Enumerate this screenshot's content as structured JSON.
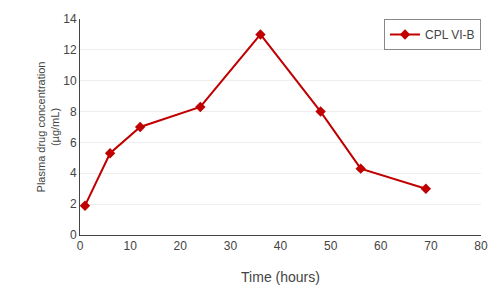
{
  "chart_data": {
    "type": "line",
    "xlabel": "Time (hours)",
    "ylabel": "Plasma drug concentration\n(µg/mL)",
    "x": [
      1,
      6,
      12,
      24,
      36,
      48,
      56,
      69
    ],
    "series": [
      {
        "name": "CPL VI-B",
        "color": "#C00000",
        "marker": "diamond",
        "values": [
          1.9,
          5.3,
          7.0,
          8.3,
          13.0,
          8.0,
          4.3,
          3.0
        ]
      }
    ],
    "xlim": [
      0,
      80
    ],
    "ylim": [
      0,
      14
    ],
    "xticks": [
      0,
      10,
      20,
      30,
      40,
      50,
      60,
      70,
      80
    ],
    "yticks": [
      0,
      2,
      4,
      6,
      8,
      10,
      12,
      14
    ],
    "grid": "y",
    "legend": "upper right"
  }
}
